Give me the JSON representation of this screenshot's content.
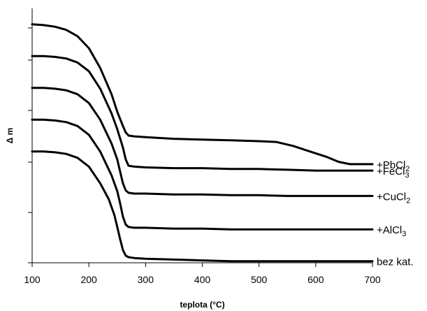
{
  "chart_data": {
    "type": "line",
    "xlabel": "teplota (°C)",
    "ylabel": "Δ m",
    "xlim": [
      100,
      700
    ],
    "ylim": [
      0,
      320
    ],
    "xticks": [
      100,
      200,
      300,
      400,
      500,
      600,
      700
    ],
    "series": [
      {
        "name": "+PbCl2",
        "label_base": "+PbCl",
        "label_sub": "2",
        "x": [
          100,
          120,
          140,
          160,
          180,
          200,
          220,
          240,
          250,
          260,
          265,
          270,
          280,
          300,
          350,
          400,
          450,
          500,
          530,
          560,
          590,
          620,
          640,
          660,
          700
        ],
        "y": [
          300,
          299,
          297,
          293,
          285,
          270,
          245,
          212,
          190,
          172,
          164,
          160,
          159,
          158,
          156,
          155,
          154,
          153,
          152,
          147,
          140,
          133,
          127,
          124,
          124
        ]
      },
      {
        "name": "+FeCl3",
        "label_base": "+FeCl",
        "label_sub": "3",
        "x": [
          100,
          120,
          140,
          160,
          180,
          200,
          220,
          240,
          250,
          260,
          265,
          270,
          280,
          300,
          350,
          400,
          450,
          500,
          550,
          600,
          650,
          700
        ],
        "y": [
          260,
          260,
          259,
          257,
          252,
          241,
          219,
          188,
          168,
          145,
          130,
          122,
          121,
          120,
          119,
          119,
          118,
          118,
          117,
          116,
          116,
          116
        ]
      },
      {
        "name": "+CuCl2",
        "label_base": "+CuCl",
        "label_sub": "2",
        "x": [
          100,
          120,
          140,
          160,
          180,
          200,
          220,
          240,
          250,
          255,
          260,
          265,
          270,
          280,
          300,
          350,
          400,
          450,
          500,
          550,
          600,
          650,
          700
        ],
        "y": [
          220,
          220,
          219,
          217,
          212,
          201,
          180,
          150,
          130,
          115,
          100,
          91,
          88,
          87,
          87,
          86,
          86,
          85,
          85,
          84,
          84,
          84,
          84
        ]
      },
      {
        "name": "+AlCl3",
        "label_base": "+AlCl",
        "label_sub": "3",
        "x": [
          100,
          120,
          140,
          160,
          180,
          200,
          220,
          240,
          250,
          255,
          260,
          265,
          270,
          280,
          300,
          350,
          400,
          450,
          500,
          550,
          600,
          650,
          700
        ],
        "y": [
          180,
          180,
          179,
          177,
          172,
          161,
          140,
          110,
          90,
          75,
          58,
          48,
          45,
          44,
          44,
          43,
          43,
          42,
          42,
          42,
          42,
          42,
          42
        ]
      },
      {
        "name": "bez kat.",
        "label_base": "bez kat.",
        "label_sub": "",
        "x": [
          100,
          120,
          140,
          160,
          180,
          200,
          220,
          235,
          245,
          250,
          255,
          260,
          265,
          270,
          280,
          300,
          350,
          400,
          450,
          500,
          550,
          600,
          650,
          700
        ],
        "y": [
          140,
          140,
          139,
          137,
          132,
          121,
          100,
          80,
          60,
          45,
          30,
          16,
          9,
          7,
          6,
          5,
          4,
          3,
          2,
          2,
          2,
          2,
          2,
          2
        ]
      }
    ]
  }
}
